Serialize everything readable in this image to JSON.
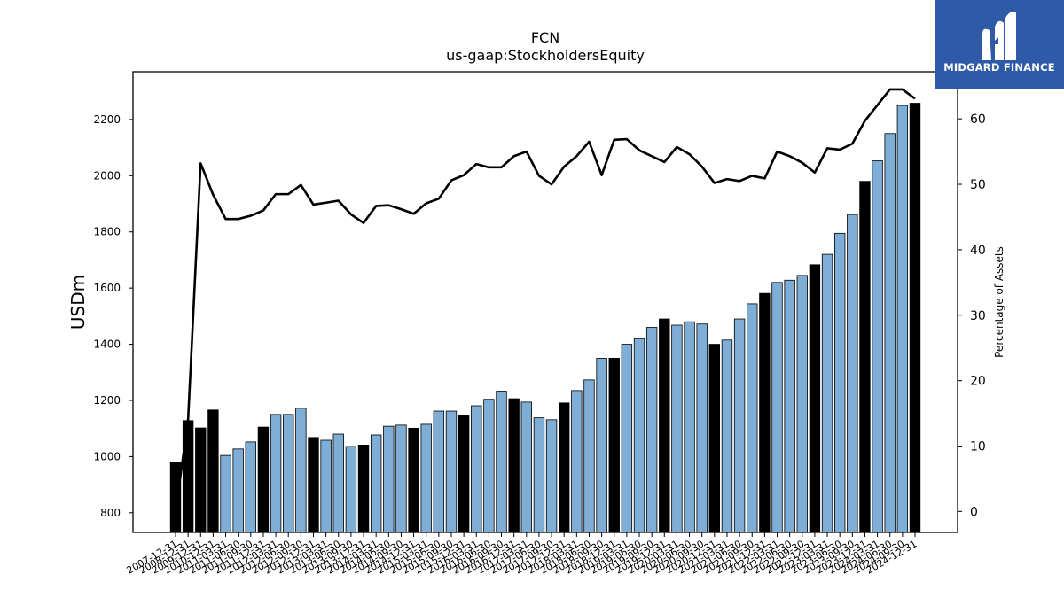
{
  "chart_data": {
    "type": "bar",
    "title": "FCN",
    "subtitle": "us-gaap:StockholdersEquity",
    "ylabel": "USDm",
    "y2label": "Percentage of Assets",
    "ylim": [
      730,
      2370
    ],
    "y2lim": [
      -3.2,
      67.2
    ],
    "yticks": [
      800,
      1000,
      1200,
      1400,
      1600,
      1800,
      2000,
      2200
    ],
    "y2ticks": [
      0,
      10,
      20,
      30,
      40,
      50,
      60
    ],
    "bar_colors": {
      "annual": "#000000",
      "quarterly": "#7eaed6"
    },
    "line_color": "#000000",
    "categories": [
      "2007-12-31",
      "2008-12-31",
      "2009-12-31",
      "2010-12-31",
      "2011-03-31",
      "2011-06-30",
      "2011-09-30",
      "2011-12-31",
      "2012-03-31",
      "2012-06-30",
      "2012-09-30",
      "2012-12-31",
      "2013-03-31",
      "2013-06-30",
      "2013-09-30",
      "2013-12-31",
      "2014-03-31",
      "2014-06-30",
      "2014-09-30",
      "2014-12-31",
      "2015-03-31",
      "2015-06-30",
      "2015-09-30",
      "2015-12-31",
      "2016-03-31",
      "2016-06-30",
      "2016-09-30",
      "2016-12-31",
      "2017-03-31",
      "2017-06-30",
      "2017-09-30",
      "2017-12-31",
      "2018-03-31",
      "2018-06-30",
      "2018-09-30",
      "2018-12-31",
      "2019-03-31",
      "2019-06-30",
      "2019-09-30",
      "2019-12-31",
      "2020-03-31",
      "2020-06-30",
      "2020-09-30",
      "2020-12-31",
      "2021-03-31",
      "2021-06-30",
      "2021-09-30",
      "2021-12-31",
      "2022-03-31",
      "2022-06-30",
      "2022-09-30",
      "2022-12-31",
      "2023-03-31",
      "2023-06-30",
      "2023-09-30",
      "2023-12-31",
      "2024-03-31",
      "2024-06-30",
      "2024-09-30",
      "2024-12-31"
    ],
    "xtick_labels": [
      "2007-12-31",
      "2008-12-31",
      "2009-12-31",
      "2010-12-31",
      "2011-03-31",
      "2011-06-30",
      "2011-09-30",
      "2011-12-31",
      "2012-03-31",
      "2012-06-30",
      "2012-09-30",
      "2012-12-31",
      "2013-03-31",
      "2013-06-30",
      "2013-09-30",
      "2013-12-31",
      "2014-03-31",
      "2014-06-30",
      "2014-09-30",
      "2014-12-31",
      "2015-03-31",
      "2015-06-30",
      "2015-09-30",
      "2015-12-31",
      "2016-03-31",
      "2016-06-30",
      "2016-09-30",
      "2016-12-31",
      "2017-03-31",
      "2017-06-30",
      "2017-09-30",
      "2017-12-31",
      "2018-03-31",
      "2018-06-30",
      "2018-09-30",
      "2018-12-31",
      "2019-03-31",
      "2019-06-30",
      "2019-09-30",
      "2019-12-31",
      "2020-03-31",
      "2020-06-30",
      "2020-09-30",
      "2020-12-31",
      "2021-03-31",
      "2021-06-30",
      "2021-09-30",
      "2021-12-31",
      "2022-03-31",
      "2022-06-30",
      "2022-09-30",
      "2022-12-31",
      "2023-03-31",
      "2023-06-30",
      "2023-09-30",
      "2023-12-31",
      "2024-03-31",
      "2024-06-30",
      "2024-09-30",
      "2024-12-31"
    ],
    "period_type": [
      "annual",
      "annual",
      "annual",
      "annual",
      "quarterly",
      "quarterly",
      "quarterly",
      "annual",
      "quarterly",
      "quarterly",
      "quarterly",
      "annual",
      "quarterly",
      "quarterly",
      "quarterly",
      "annual",
      "quarterly",
      "quarterly",
      "quarterly",
      "annual",
      "quarterly",
      "quarterly",
      "quarterly",
      "annual",
      "quarterly",
      "quarterly",
      "quarterly",
      "annual",
      "quarterly",
      "quarterly",
      "quarterly",
      "annual",
      "quarterly",
      "quarterly",
      "quarterly",
      "annual",
      "quarterly",
      "quarterly",
      "quarterly",
      "annual",
      "quarterly",
      "quarterly",
      "quarterly",
      "annual",
      "quarterly",
      "quarterly",
      "quarterly",
      "annual",
      "quarterly",
      "quarterly",
      "quarterly",
      "annual",
      "quarterly",
      "quarterly",
      "quarterly",
      "annual",
      "quarterly",
      "quarterly",
      "quarterly",
      "annual"
    ],
    "series": [
      {
        "name": "USDm",
        "axis": "left",
        "kind": "bar",
        "values": [
          980,
          1128,
          1102,
          1166,
          1004,
          1027,
          1052,
          1105,
          1150,
          1150,
          1172,
          1068,
          1058,
          1080,
          1036,
          1041,
          1077,
          1108,
          1112,
          1101,
          1115,
          1162,
          1162,
          1147,
          1181,
          1204,
          1233,
          1206,
          1194,
          1138,
          1131,
          1191,
          1235,
          1273,
          1350,
          1350,
          1400,
          1420,
          1460,
          1490,
          1468,
          1480,
          1472,
          1400,
          1415,
          1490,
          1544,
          1581,
          1620,
          1628,
          1645,
          1683,
          1720,
          1795,
          1862,
          1980,
          2053,
          2150,
          2250,
          2258
        ]
      },
      {
        "name": "Percentage of Assets",
        "axis": "right",
        "kind": "line",
        "values": [
          0,
          14,
          53.2,
          48.4,
          44.7,
          44.7,
          45.2,
          46.0,
          48.5,
          48.5,
          49.9,
          46.9,
          47.2,
          47.5,
          45.4,
          44.1,
          46.7,
          46.8,
          46.2,
          45.5,
          47.1,
          47.8,
          50.6,
          51.4,
          53.1,
          52.6,
          52.6,
          54.3,
          55.0,
          51.3,
          50.0,
          52.7,
          54.3,
          56.5,
          51.4,
          56.8,
          56.9,
          55.2,
          54.3,
          53.4,
          55.7,
          54.6,
          52.7,
          50.2,
          50.8,
          50.5,
          51.3,
          50.9,
          55.0,
          54.3,
          53.3,
          51.8,
          55.5,
          55.3,
          56.2,
          59.7,
          62.1,
          64.5,
          64.5,
          63.1
        ]
      }
    ],
    "grid": false,
    "legend": "none"
  },
  "logo": {
    "text": "MIDGARD FINANCE"
  }
}
